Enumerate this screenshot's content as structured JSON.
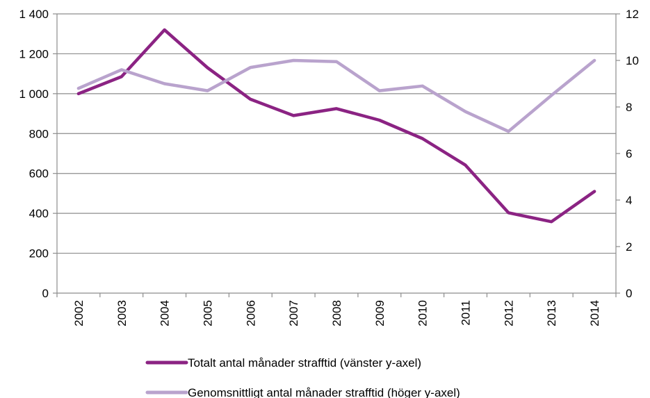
{
  "chart_data": {
    "type": "line",
    "title": "",
    "xlabel": "",
    "ylabel": "",
    "x": [
      "2002",
      "2003",
      "2004",
      "2005",
      "2006",
      "2007",
      "2008",
      "2009",
      "2010",
      "2011",
      "2012",
      "2013",
      "2014"
    ],
    "series": [
      {
        "name": "Totalt antal månader strafftid (vänster y-axel)",
        "axis": "left",
        "color": "#8b2383",
        "values": [
          1000,
          1085,
          1320,
          1130,
          972,
          890,
          925,
          867,
          775,
          642,
          403,
          358,
          510
        ]
      },
      {
        "name": "Genomsnittligt antal månader strafftid (höger y-axel)",
        "axis": "right",
        "color": "#b9a3cd",
        "values": [
          8.8,
          9.6,
          9.0,
          8.7,
          9.7,
          10.0,
          9.95,
          8.7,
          8.9,
          7.8,
          6.95,
          8.5,
          10.0
        ]
      }
    ],
    "y_left": {
      "ylim": [
        0,
        1400
      ],
      "ticks": [
        0,
        200,
        400,
        600,
        800,
        1000,
        1200,
        1400
      ],
      "tick_labels": [
        "0",
        "200",
        "400",
        "600",
        "800",
        "1 000",
        "1 200",
        "1 400"
      ]
    },
    "y_right": {
      "ylim": [
        0,
        12
      ],
      "ticks": [
        0,
        2,
        4,
        6,
        8,
        10,
        12
      ],
      "tick_labels": [
        "0",
        "2",
        "4",
        "6",
        "8",
        "10",
        "12"
      ]
    },
    "grid": true,
    "legend_position": "bottom",
    "gridline_color": "#8c8c8c",
    "axis_color": "#8c8c8c"
  }
}
